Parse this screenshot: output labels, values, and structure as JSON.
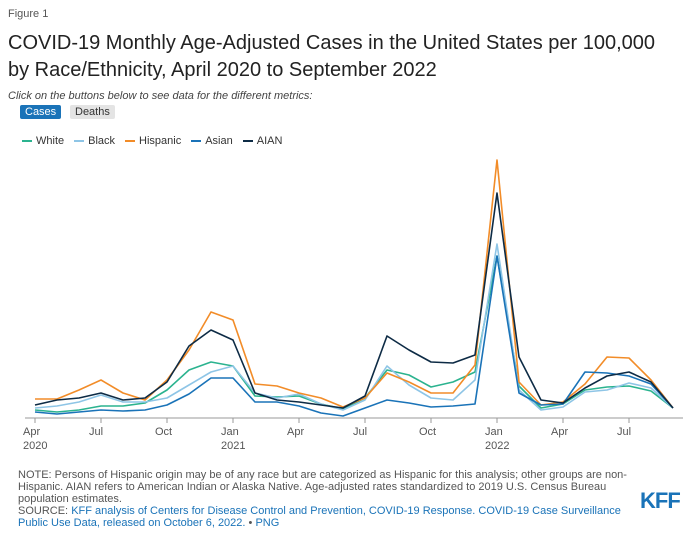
{
  "figure_label": "Figure 1",
  "subtitle": "Click on the buttons below to see data for the different metrics:",
  "buttons": [
    "Cases",
    "Deaths"
  ],
  "chart_data": {
    "type": "line",
    "title": "COVID-19 Monthly Age-Adjusted Cases in the United States per 100,000 by Race/Ethnicity, April 2020 to September 2022",
    "categories": [
      "Apr 2020",
      null,
      null,
      "Jul",
      null,
      null,
      "Oct",
      null,
      null,
      "Jan 2021",
      null,
      null,
      "Apr",
      null,
      null,
      "Jul",
      null,
      null,
      "Oct",
      null,
      null,
      "Jan 2022",
      null,
      null,
      "Apr",
      null,
      null,
      "Jul",
      null,
      null
    ],
    "ylim": [
      0,
      2700
    ],
    "series": [
      {
        "name": "White",
        "color": "#2bb38f",
        "values": [
          80,
          60,
          80,
          120,
          120,
          150,
          280,
          480,
          560,
          520,
          220,
          210,
          220,
          140,
          90,
          200,
          480,
          430,
          310,
          360,
          460,
          1620,
          320,
          100,
          140,
          280,
          310,
          320,
          270,
          100
        ]
      },
      {
        "name": "Black",
        "color": "#8ec5e6",
        "values": [
          100,
          120,
          160,
          230,
          160,
          160,
          200,
          330,
          460,
          520,
          250,
          200,
          240,
          140,
          80,
          180,
          520,
          330,
          200,
          180,
          380,
          1740,
          280,
          80,
          110,
          260,
          280,
          350,
          300,
          100
        ]
      },
      {
        "name": "Hispanic",
        "color": "#f28c28",
        "values": [
          190,
          190,
          280,
          380,
          250,
          180,
          380,
          680,
          1060,
          980,
          340,
          320,
          250,
          200,
          110,
          200,
          450,
          360,
          250,
          250,
          530,
          2580,
          360,
          130,
          160,
          340,
          610,
          600,
          380,
          100
        ]
      },
      {
        "name": "Asian",
        "color": "#1a73b8",
        "values": [
          60,
          40,
          60,
          80,
          70,
          80,
          130,
          240,
          400,
          400,
          160,
          160,
          120,
          50,
          20,
          100,
          180,
          150,
          110,
          120,
          140,
          1620,
          250,
          130,
          140,
          460,
          450,
          420,
          340,
          100
        ]
      },
      {
        "name": "AIAN",
        "color": "#0d2b45",
        "values": [
          130,
          180,
          200,
          250,
          180,
          200,
          360,
          720,
          880,
          780,
          250,
          180,
          160,
          130,
          100,
          220,
          820,
          680,
          560,
          550,
          630,
          2250,
          610,
          180,
          150,
          300,
          420,
          460,
          360,
          100
        ]
      }
    ],
    "legend": "top-left"
  },
  "footer": {
    "note": "NOTE: Persons of Hispanic origin may be of any race but are categorized as Hispanic for this analysis; other groups are non-Hispanic. AIAN refers to American Indian or Alaska Native. Age-adjusted rates standardized to 2019 U.S. Census Bureau population estimates.",
    "source_prefix": "SOURCE:",
    "source_link": "KFF analysis of Centers for Disease Control and Prevention, COVID-19 Response. COVID-19 Case Surveillance Public Use Data, released on October 6, 2022.",
    "separator": "•",
    "png": "PNG",
    "logo": "KFF"
  }
}
